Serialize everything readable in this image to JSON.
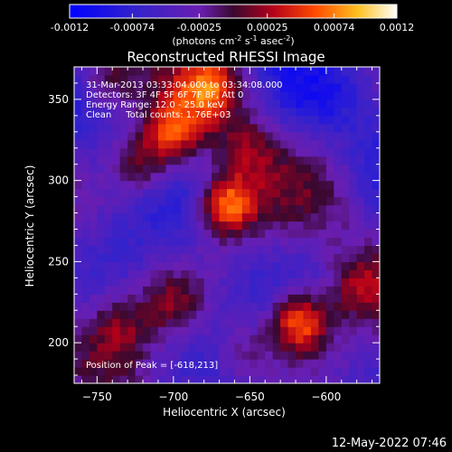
{
  "chart_data": {
    "type": "heatmap",
    "title": "Reconstructed RHESSI Image",
    "xlabel": "Heliocentric X (arcsec)",
    "ylabel": "Heliocentric Y (arcsec)",
    "xlim": [
      -765,
      -565
    ],
    "ylim": [
      175,
      370
    ],
    "x_ticks": [
      -750,
      -700,
      -650,
      -600
    ],
    "y_ticks": [
      200,
      250,
      300,
      350
    ],
    "colorbar": {
      "range": [
        -0.0012,
        0.0012
      ],
      "ticks": [
        -0.0012,
        -0.00074,
        -0.00025,
        0.00025,
        0.00074,
        0.0012
      ],
      "tick_labels": [
        "-0.0012",
        "-0.00074",
        "-0.00025",
        "0.00025",
        "0.00074",
        "0.0012"
      ],
      "unit_base": "(photons cm",
      "unit_exp1": "-2",
      "unit_mid1": " s",
      "unit_exp2": "-1",
      "unit_mid2": " asec",
      "unit_exp3": "-2",
      "unit_end": ")"
    },
    "sources": [
      {
        "x": -665,
        "y": 285,
        "peak": 0.0012
      },
      {
        "x": -618,
        "y": 213,
        "peak": 0.0012
      },
      {
        "x": -700,
        "y": 330,
        "peak": 0.0008
      },
      {
        "x": -675,
        "y": 360,
        "peak": 0.0007
      },
      {
        "x": -720,
        "y": 310,
        "peak": 0.0006
      },
      {
        "x": -745,
        "y": 360,
        "peak": 0.0006
      },
      {
        "x": -700,
        "y": 225,
        "peak": 0.0005
      },
      {
        "x": -580,
        "y": 235,
        "peak": 0.0005
      },
      {
        "x": -655,
        "y": 195,
        "peak": 0.0005
      },
      {
        "x": -735,
        "y": 210,
        "peak": 0.0004
      },
      {
        "x": -650,
        "y": 320,
        "peak": 0.0004
      }
    ],
    "annotations": {
      "line1": "31-Mar-2013 03:33:04.000 to 03:34:08.000",
      "line2": "Detectors: 3F 4F 5F 6F 7F 8F, Att 0",
      "line3": "Energy Range: 12.0 - 25.0 keV",
      "line4": "Clean     Total counts: 1.76E+03",
      "peak": "Position of Peak = [-618,213]"
    }
  },
  "footer_timestamp": "12-May-2022 07:46"
}
